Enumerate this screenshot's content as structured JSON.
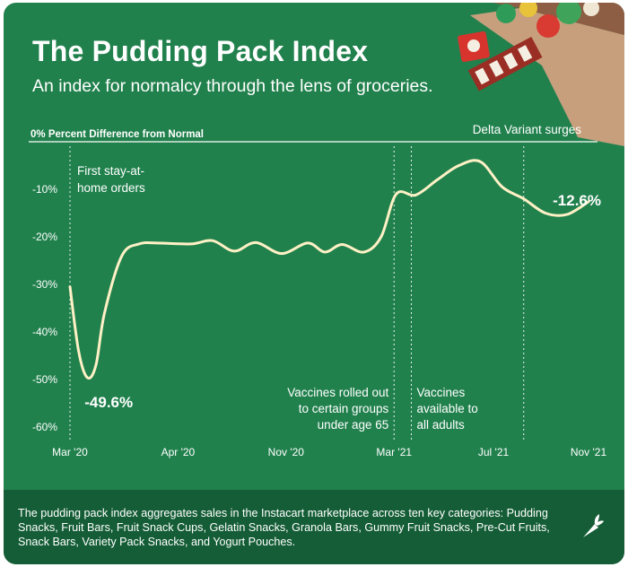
{
  "title": "The Pudding Pack Index",
  "subtitle": "An index for normalcy through the lens of groceries.",
  "footnote": "The pudding pack index aggregates sales in the Instacart marketplace across ten key categories: Pudding Snacks, Fruit Bars, Fruit Snack Cups, Gelatin Snacks, Granola Bars, Gummy Fruit Snacks, Pre-Cut Fruits, Snack Bars, Variety Pack Snacks, and Yogurt Pouches.",
  "colors": {
    "background": "#21814d",
    "footer": "#145d36",
    "line": "#fff1c6",
    "text": "#ffffff"
  },
  "icons": [
    "grocery-bag-icon",
    "carrot-icon"
  ],
  "chart_data": {
    "type": "line",
    "title": "The Pudding Pack Index",
    "ylabel": "Percent Difference from Normal",
    "baseline_label": "0% Percent Difference from Normal",
    "xlabel": "",
    "ylim": [
      -60,
      0
    ],
    "yticks": [
      {
        "value": -10,
        "label": "-10%"
      },
      {
        "value": -20,
        "label": "-20%"
      },
      {
        "value": -30,
        "label": "-30%"
      },
      {
        "value": -40,
        "label": "-40%"
      },
      {
        "value": -50,
        "label": "-50%"
      },
      {
        "value": -60,
        "label": "-60%"
      }
    ],
    "xticks": [
      {
        "month": 0,
        "label": "Mar '20"
      },
      {
        "month": 2.5,
        "label": "Apr '20"
      },
      {
        "month": 5,
        "label": "Nov '20"
      },
      {
        "month": 7.5,
        "label": "Mar '21"
      },
      {
        "month": 9.8,
        "label": "Jul '21"
      },
      {
        "month": 12,
        "label": "Nov '21"
      }
    ],
    "series": [
      {
        "name": "Pudding Pack Index",
        "x": [
          0,
          0.2,
          0.4,
          0.6,
          0.8,
          1.2,
          1.6,
          2.0,
          2.8,
          3.3,
          3.8,
          4.3,
          4.9,
          5.5,
          5.9,
          6.3,
          6.8,
          7.2,
          7.55,
          8.0,
          8.5,
          9.0,
          9.5,
          10.0,
          10.5,
          11.0,
          11.5,
          12.0
        ],
        "values": [
          -30.5,
          -44.0,
          -49.6,
          -47.0,
          -36.0,
          -24.0,
          -21.5,
          -21.3,
          -21.5,
          -20.8,
          -23.0,
          -21.2,
          -23.5,
          -21.3,
          -23.2,
          -21.6,
          -23.2,
          -20.0,
          -11.0,
          -11.2,
          -8.0,
          -5.0,
          -4.2,
          -9.5,
          -12.0,
          -15.0,
          -15.3,
          -12.6
        ]
      }
    ],
    "annotations": [
      {
        "text": "First stay-at-home orders",
        "lines": [
          "First stay-at-",
          "home orders"
        ],
        "month": 0
      },
      {
        "text": "Vaccines rolled out to certain groups under age 65",
        "lines": [
          "Vaccines rolled out",
          "to certain groups",
          "under age 65"
        ],
        "month": 7.5
      },
      {
        "text": "Vaccines available to all adults",
        "lines": [
          "Vaccines",
          "available to",
          "all adults"
        ],
        "month": 7.9
      },
      {
        "text": "Delta Variant surges",
        "lines": [
          "Delta Variant surges"
        ],
        "month": 10.5
      }
    ],
    "callouts": [
      {
        "label": "-49.6%",
        "month": 0.4,
        "value": -49.6
      },
      {
        "label": "-12.6%",
        "month": 12.0,
        "value": -12.6
      }
    ]
  }
}
